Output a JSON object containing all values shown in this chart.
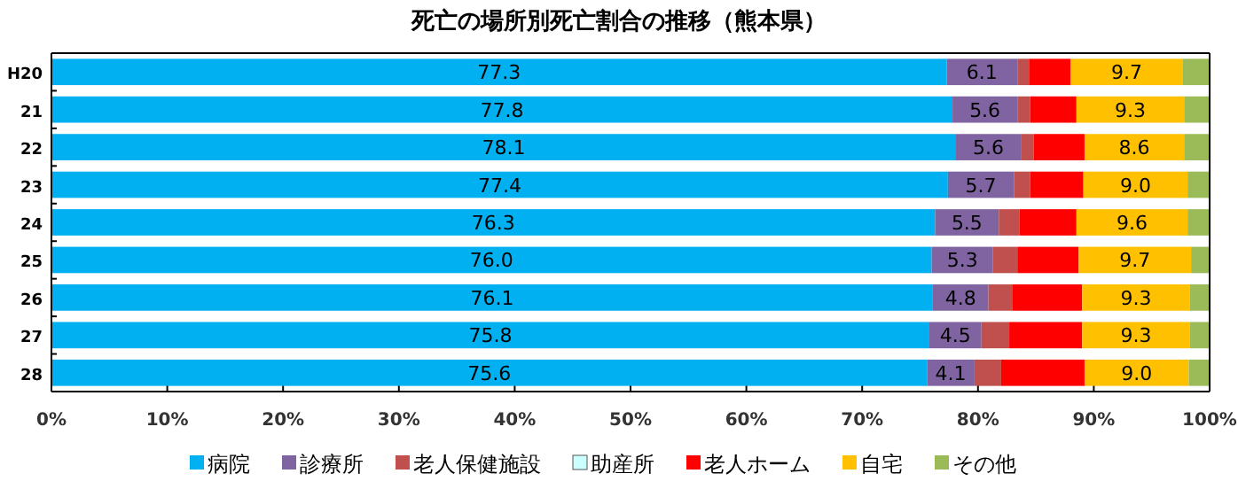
{
  "chart_data": {
    "type": "bar",
    "orientation": "horizontal",
    "stacked": true,
    "title": "死亡の場所別死亡割合の推移（熊本県）",
    "categories": [
      "H20",
      "21",
      "22",
      "23",
      "24",
      "25",
      "26",
      "27",
      "28"
    ],
    "series": [
      {
        "name": "病院",
        "color": "#00b0f0",
        "values": [
          77.3,
          77.8,
          78.1,
          77.4,
          76.3,
          76.0,
          76.1,
          75.8,
          75.6
        ],
        "value_labels": [
          "77.3",
          "77.8",
          "78.1",
          "77.4",
          "76.3",
          "76.0",
          "76.1",
          "75.8",
          "75.6"
        ]
      },
      {
        "name": "診療所",
        "color": "#8064a2",
        "values": [
          6.1,
          5.6,
          5.6,
          5.7,
          5.5,
          5.3,
          4.8,
          4.5,
          4.1
        ],
        "value_labels": [
          "6.1",
          "5.6",
          "5.6",
          "5.7",
          "5.5",
          "5.3",
          "4.8",
          "4.5",
          "4.1"
        ]
      },
      {
        "name": "老人保健施設",
        "color": "#c0504d",
        "values": [
          1.0,
          1.1,
          1.1,
          1.4,
          1.8,
          2.1,
          2.1,
          2.4,
          2.3
        ]
      },
      {
        "name": "助産所",
        "color": "#ccffff",
        "values": [
          0,
          0,
          0,
          0,
          0,
          0,
          0,
          0,
          0
        ]
      },
      {
        "name": "老人ホーム",
        "color": "#ff0000",
        "values": [
          3.6,
          4.0,
          4.4,
          4.6,
          4.9,
          5.3,
          6.0,
          6.3,
          7.2
        ]
      },
      {
        "name": "自宅",
        "color": "#ffc000",
        "values": [
          9.7,
          9.3,
          8.6,
          9.0,
          9.6,
          9.7,
          9.3,
          9.3,
          9.0
        ],
        "value_labels": [
          "9.7",
          "9.3",
          "8.6",
          "9.0",
          "9.6",
          "9.7",
          "9.3",
          "9.3",
          "9.0"
        ]
      },
      {
        "name": "その他",
        "color": "#9bbb59",
        "values": [
          2.3,
          2.2,
          2.2,
          1.9,
          1.9,
          1.6,
          1.7,
          1.7,
          1.8
        ]
      }
    ],
    "xlim": [
      0,
      100
    ],
    "xticks": [
      {
        "value": 0,
        "label": "0%"
      },
      {
        "value": 10,
        "label": "10%"
      },
      {
        "value": 20,
        "label": "20%"
      },
      {
        "value": 30,
        "label": "30%"
      },
      {
        "value": 40,
        "label": "40%"
      },
      {
        "value": 50,
        "label": "50%"
      },
      {
        "value": 60,
        "label": "60%"
      },
      {
        "value": 70,
        "label": "70%"
      },
      {
        "value": 80,
        "label": "80%"
      },
      {
        "value": 90,
        "label": "90%"
      },
      {
        "value": 100,
        "label": "100%"
      }
    ],
    "legend": "bottom",
    "grid": false
  }
}
